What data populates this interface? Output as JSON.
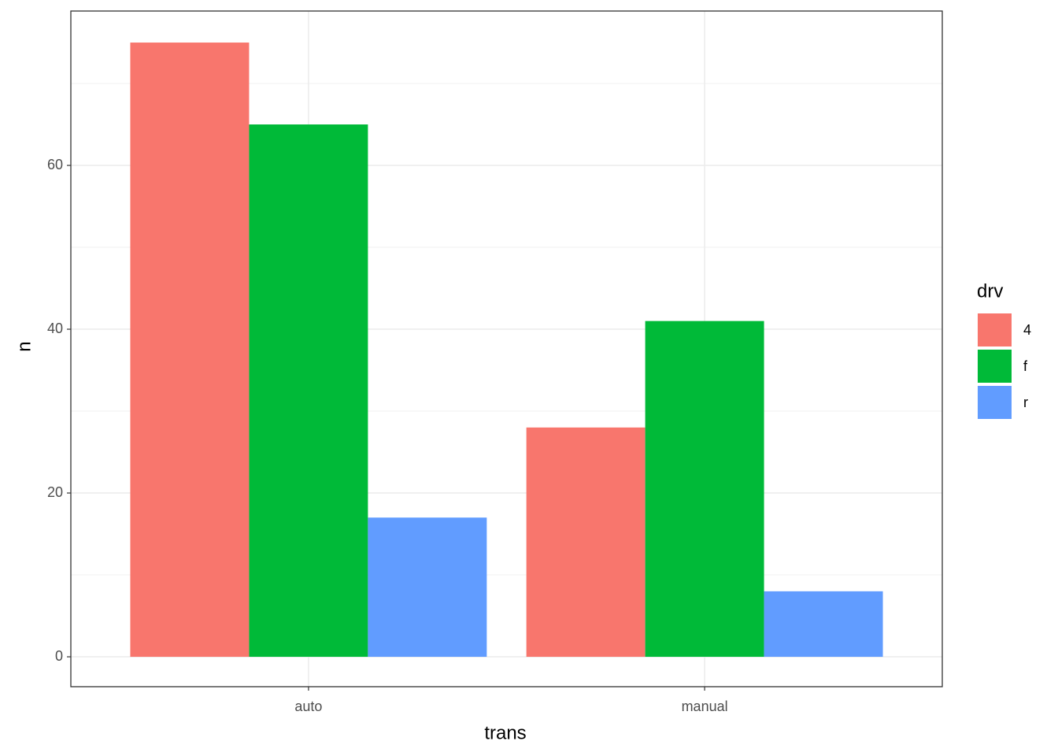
{
  "chart_data": {
    "type": "bar",
    "x_label": "trans",
    "y_label": "n",
    "categories": [
      "auto",
      "manual"
    ],
    "series": [
      {
        "name": "4",
        "color": "#f8766d",
        "values": [
          75,
          28
        ]
      },
      {
        "name": "f",
        "color": "#00ba38",
        "values": [
          65,
          41
        ]
      },
      {
        "name": "r",
        "color": "#619cff",
        "values": [
          17,
          8
        ]
      }
    ],
    "legend_title": "drv",
    "legend_position": "right",
    "ylim": [
      -3.65,
      78.85
    ],
    "yticks": [
      0,
      20,
      40,
      60
    ],
    "minor_yticks": [
      10,
      30,
      50,
      70
    ],
    "grid": true
  }
}
